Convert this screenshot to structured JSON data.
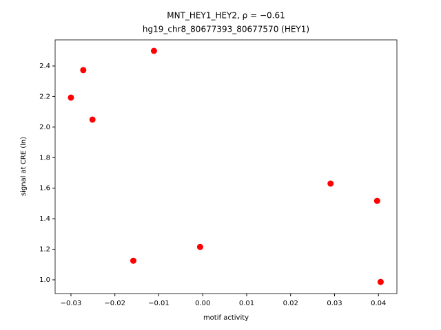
{
  "chart_data": {
    "type": "scatter",
    "title": "MNT_HEY1_HEY2, ρ = −0.61",
    "subtitle": "hg19_chr8_80677393_80677570 (HEY1)",
    "x_label": "motif activity",
    "y_label": "signal at CRE (ln)",
    "color": "#ff0000",
    "x": [
      -0.03,
      -0.0272,
      -0.0251,
      -0.0158,
      -0.0111,
      -0.0006,
      0.0291,
      0.0397,
      0.0405
    ],
    "values": [
      2.193,
      2.373,
      2.049,
      1.125,
      2.499,
      1.215,
      1.63,
      1.517,
      0.986
    ],
    "xlim": [
      -0.0336,
      0.0442
    ],
    "ylim": [
      0.91,
      2.571
    ],
    "xticks": [
      {
        "value": -0.03,
        "label": "−0.03"
      },
      {
        "value": -0.02,
        "label": "−0.02"
      },
      {
        "value": -0.01,
        "label": "−0.01"
      },
      {
        "value": 0,
        "label": "0.00"
      },
      0.01,
      0.02,
      0.03,
      0.04
    ],
    "yticks": [
      {
        "value": 1,
        "label": "1.0"
      },
      1.2,
      1.4,
      1.6,
      1.8,
      {
        "value": 2,
        "label": "2.0"
      },
      2.2,
      2.4
    ]
  }
}
